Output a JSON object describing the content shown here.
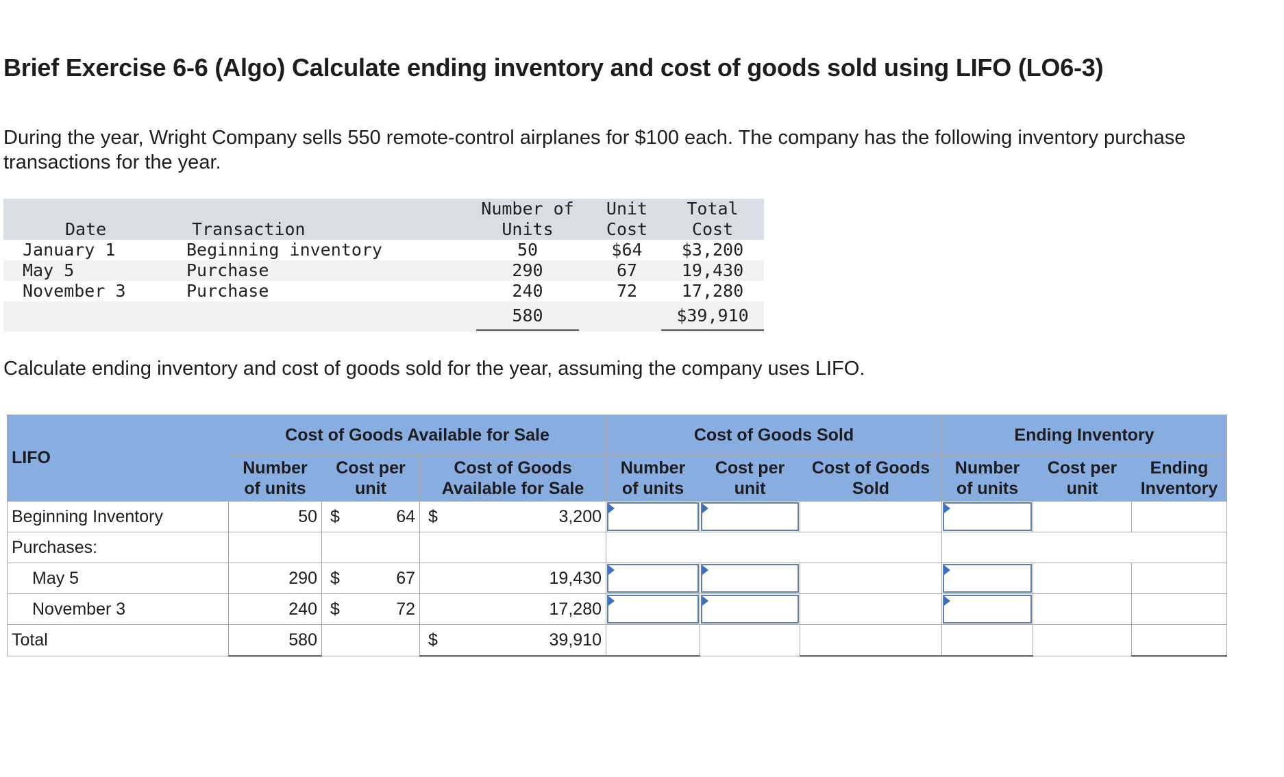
{
  "title": "Brief Exercise 6-6 (Algo) Calculate ending inventory and cost of goods sold using LIFO (LO6-3)",
  "intro_line1": "During the year, Wright Company sells 550 remote-control airplanes for $100 each. The company has the following inventory purchase",
  "intro_line2": "transactions for the year.",
  "given": {
    "headers": {
      "date": "Date",
      "transaction": "Transaction",
      "units_1": "Number of",
      "units_2": "Units",
      "unit_cost_1": "Unit",
      "unit_cost_2": "Cost",
      "total_cost_1": "Total",
      "total_cost_2": "Cost"
    },
    "rows": [
      {
        "date": "January 1",
        "transaction": "Beginning inventory",
        "units": "50",
        "unit_cost": "$64",
        "total_cost": "$3,200"
      },
      {
        "date": "May 5",
        "transaction": "Purchase",
        "units": "290",
        "unit_cost": "67",
        "total_cost": "19,430"
      },
      {
        "date": "November 3",
        "transaction": "Purchase",
        "units": "240",
        "unit_cost": "72",
        "total_cost": "17,280"
      }
    ],
    "total_units": "580",
    "total_cost": "$39,910"
  },
  "prompt": "Calculate ending inventory and cost of goods sold for the year, assuming the company uses LIFO.",
  "worksheet": {
    "lifo_label": "LIFO",
    "groups": {
      "available": "Cost of Goods Available for Sale",
      "sold": "Cost of Goods Sold",
      "ending": "Ending Inventory"
    },
    "subheaders": {
      "a_units_1": "Number",
      "a_units_2": "of units",
      "a_cost_1": "Cost per",
      "a_cost_2": "unit",
      "a_total_1": "Cost of Goods",
      "a_total_2": "Available for Sale",
      "s_units_1": "Number",
      "s_units_2": "of units",
      "s_cost_1": "Cost per",
      "s_cost_2": "unit",
      "s_total_1": "Cost of Goods",
      "s_total_2": "Sold",
      "e_units_1": "Number",
      "e_units_2": "of units",
      "e_cost_1": "Cost per",
      "e_cost_2": "unit",
      "e_total_1": "Ending",
      "e_total_2": "Inventory"
    },
    "currency": "$",
    "rows": {
      "beginning": {
        "label": "Beginning Inventory",
        "units": "50",
        "cost": "64",
        "total": "3,200"
      },
      "purchases_label": "Purchases:",
      "may": {
        "label": "May 5",
        "units": "290",
        "cost": "67",
        "total": "19,430"
      },
      "nov": {
        "label": "November 3",
        "units": "240",
        "cost": "72",
        "total": "17,280"
      },
      "total": {
        "label": "Total",
        "units": "580",
        "total": "39,910"
      }
    },
    "input_values": {
      "beg_sold_units": "",
      "beg_sold_cost": "",
      "beg_end_units": "",
      "may_sold_units": "",
      "may_sold_cost": "",
      "may_end_units": "",
      "nov_sold_units": "",
      "nov_sold_cost": "",
      "nov_end_units": ""
    }
  }
}
